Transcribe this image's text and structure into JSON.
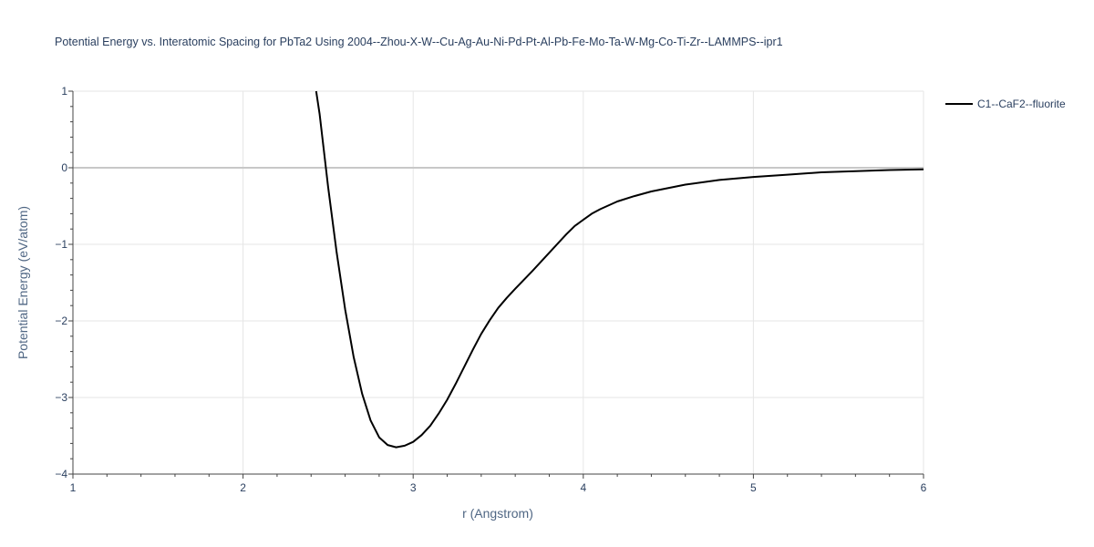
{
  "chart_data": {
    "type": "line",
    "title": "Potential Energy vs. Interatomic Spacing for PbTa2 Using 2004--Zhou-X-W--Cu-Ag-Au-Ni-Pd-Pt-Al-Pb-Fe-Mo-Ta-W-Mg-Co-Ti-Zr--LAMMPS--ipr1",
    "xlabel": "r (Angstrom)",
    "ylabel": "Potential Energy (eV/atom)",
    "xlim": [
      1,
      6
    ],
    "ylim": [
      -4,
      1
    ],
    "x_ticks": [
      "1",
      "2",
      "3",
      "4",
      "5",
      "6"
    ],
    "y_ticks": [
      "1",
      "0",
      "−1",
      "−2",
      "−3",
      "−4"
    ],
    "grid": true,
    "legend_position": "top-right",
    "series": [
      {
        "name": "C1--CaF2--fluorite",
        "color": "#000000",
        "x": [
          2.43,
          2.45,
          2.5,
          2.55,
          2.6,
          2.65,
          2.7,
          2.75,
          2.8,
          2.85,
          2.9,
          2.95,
          3.0,
          3.05,
          3.1,
          3.15,
          3.2,
          3.25,
          3.3,
          3.35,
          3.4,
          3.45,
          3.5,
          3.55,
          3.6,
          3.7,
          3.8,
          3.9,
          3.95,
          4.0,
          4.05,
          4.1,
          4.2,
          4.3,
          4.4,
          4.6,
          4.8,
          5.0,
          5.2,
          5.4,
          5.6,
          5.8,
          6.0
        ],
        "y": [
          1.0,
          0.7,
          -0.25,
          -1.1,
          -1.85,
          -2.47,
          -2.95,
          -3.3,
          -3.52,
          -3.62,
          -3.65,
          -3.63,
          -3.58,
          -3.49,
          -3.37,
          -3.21,
          -3.03,
          -2.82,
          -2.6,
          -2.38,
          -2.17,
          -1.99,
          -1.83,
          -1.7,
          -1.58,
          -1.35,
          -1.11,
          -0.87,
          -0.76,
          -0.68,
          -0.6,
          -0.54,
          -0.44,
          -0.37,
          -0.31,
          -0.22,
          -0.16,
          -0.12,
          -0.09,
          -0.06,
          -0.045,
          -0.03,
          -0.02
        ]
      }
    ]
  }
}
